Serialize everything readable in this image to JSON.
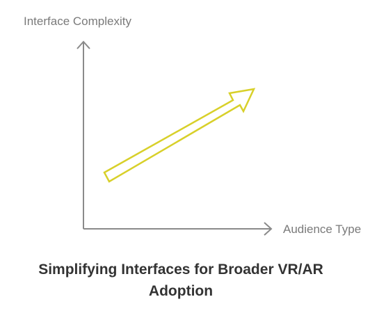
{
  "diagram": {
    "y_axis_label": "Interface Complexity",
    "x_axis_label": "Audience Type",
    "title_line1": "Simplifying Interfaces for Broader VR/AR",
    "title_line2": "Adoption"
  },
  "colors": {
    "axis": "#8a8a8a",
    "arrow_stroke": "#d8d02a",
    "arrow_fill": "#ffffff",
    "label": "#7a7a7a",
    "title": "#333333"
  }
}
